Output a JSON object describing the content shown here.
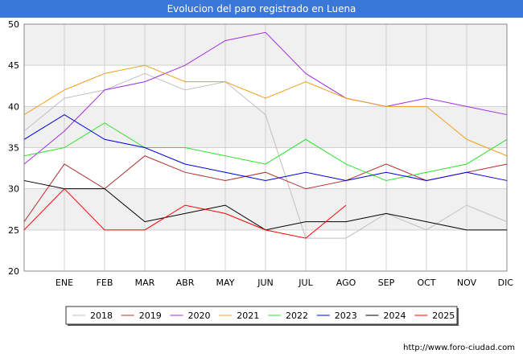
{
  "title": "Evolucion del paro registrado en Luena",
  "source": "http://www.foro-ciudad.com",
  "colors": {
    "title_bar": "#3a78d8",
    "band": "#f0f0f0",
    "grid": "#d0d0d0"
  },
  "chart_data": {
    "type": "line",
    "categories": [
      "",
      "ENE",
      "FEB",
      "MAR",
      "ABR",
      "MAY",
      "JUN",
      "JUL",
      "AGO",
      "SEP",
      "OCT",
      "NOV",
      "DIC"
    ],
    "ylim": [
      20,
      50
    ],
    "yticks": [
      20,
      25,
      30,
      35,
      40,
      45,
      50
    ],
    "grid": true,
    "legend_position": "bottom",
    "series": [
      {
        "name": "2018",
        "color": "#c0c0c0",
        "values": [
          37,
          41,
          42,
          44,
          42,
          43,
          39,
          24,
          24,
          27,
          25,
          28,
          26
        ]
      },
      {
        "name": "2019",
        "color": "#b03030",
        "values": [
          26,
          33,
          30,
          34,
          32,
          31,
          32,
          30,
          31,
          33,
          31,
          32,
          33
        ]
      },
      {
        "name": "2020",
        "color": "#a030e0",
        "values": [
          33,
          37,
          42,
          43,
          45,
          48,
          49,
          44,
          41,
          40,
          41,
          40,
          39
        ]
      },
      {
        "name": "2021",
        "color": "#f0a020",
        "values": [
          39,
          42,
          44,
          45,
          43,
          43,
          41,
          43,
          41,
          40,
          40,
          36,
          34
        ]
      },
      {
        "name": "2022",
        "color": "#30e030",
        "values": [
          34,
          35,
          38,
          35,
          35,
          34,
          33,
          36,
          33,
          31,
          32,
          33,
          36
        ]
      },
      {
        "name": "2023",
        "color": "#0000e0",
        "values": [
          36,
          39,
          36,
          35,
          33,
          32,
          31,
          32,
          31,
          32,
          31,
          32,
          31
        ]
      },
      {
        "name": "2024",
        "color": "#000000",
        "values": [
          31,
          30,
          30,
          26,
          27,
          28,
          25,
          26,
          26,
          27,
          26,
          25,
          25
        ]
      },
      {
        "name": "2025",
        "color": "#ff0000",
        "values": [
          25,
          30,
          25,
          25,
          28,
          27,
          25,
          24,
          28,
          null,
          null,
          null,
          null
        ]
      }
    ]
  }
}
